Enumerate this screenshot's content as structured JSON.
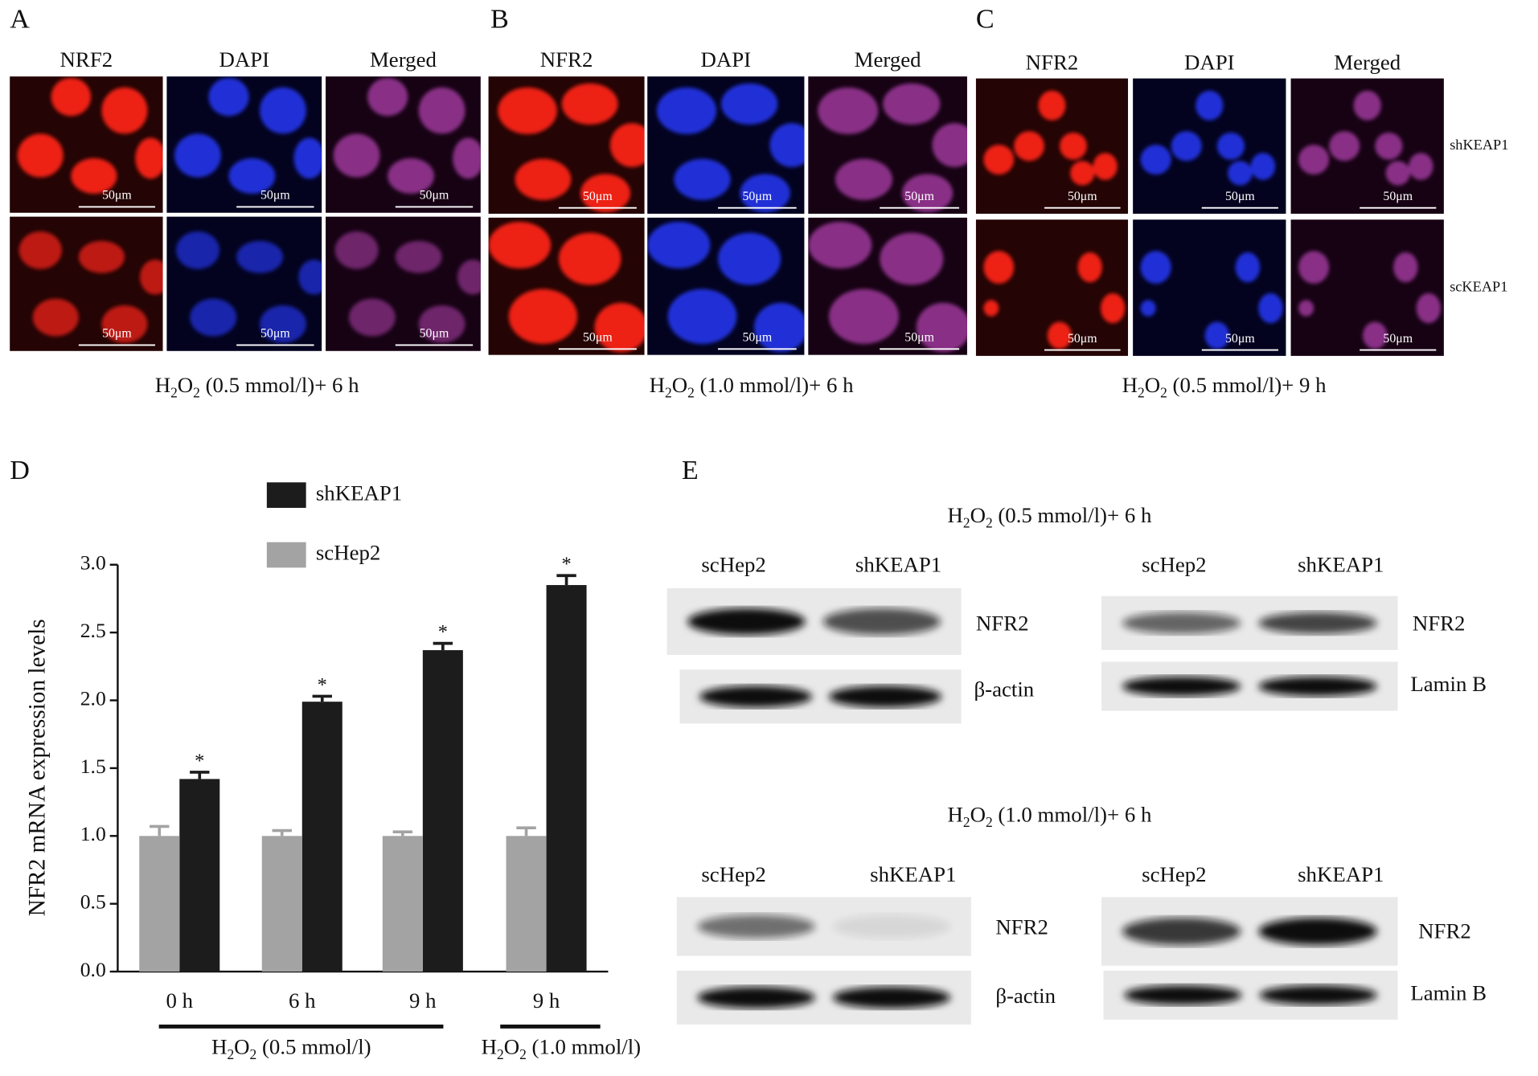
{
  "panels": {
    "A": {
      "label": "A",
      "columns": [
        "NRF2",
        "DAPI",
        "Merged"
      ],
      "scale_bar": "50μm",
      "caption": [
        "H",
        "2",
        "O",
        "2",
        " (0.5 mmol/l)+ 6 h"
      ]
    },
    "B": {
      "label": "B",
      "columns": [
        "NFR2",
        "DAPI",
        "Merged"
      ],
      "scale_bar": "50μm",
      "caption": [
        "H",
        "2",
        "O",
        "2",
        " (1.0 mmol/l)+ 6 h"
      ]
    },
    "C": {
      "label": "C",
      "columns": [
        "NFR2",
        "DAPI",
        "Merged"
      ],
      "rows": [
        "shKEAP1",
        "scKEAP1"
      ],
      "scale_bar": "50μm",
      "caption": [
        "H",
        "2",
        "O",
        "2",
        " (0.5 mmol/l)+ 9 h"
      ]
    },
    "D": {
      "label": "D"
    },
    "E": {
      "label": "E",
      "blocks": [
        {
          "title": [
            "H",
            "2",
            "O",
            "2",
            " (0.5 mmol/l)+ 6 h"
          ],
          "left": {
            "lanes": [
              "scHep2",
              "shKEAP1"
            ],
            "rows": [
              "NFR2",
              "β-actin"
            ]
          },
          "right": {
            "lanes": [
              "scHep2",
              "shKEAP1"
            ],
            "rows": [
              "NFR2",
              "Lamin B"
            ]
          }
        },
        {
          "title": [
            "H",
            "2",
            "O",
            "2",
            " (1.0 mmol/l)+ 6 h"
          ],
          "left": {
            "lanes": [
              "scHep2",
              "shKEAP1"
            ],
            "rows": [
              "NFR2",
              "β-actin"
            ]
          },
          "right": {
            "lanes": [
              "scHep2",
              "shKEAP1"
            ],
            "rows": [
              "NFR2",
              "Lamin B"
            ]
          }
        }
      ]
    }
  },
  "chart_data": {
    "type": "bar",
    "y_label": "NFR2 mRNA expression levels",
    "categories": [
      "0 h",
      "6 h",
      "9 h",
      "9 h"
    ],
    "series": [
      {
        "name": "shKEAP1",
        "color": "#1c1c1c",
        "values": [
          1.42,
          1.99,
          2.37,
          2.85
        ],
        "errors": [
          0.05,
          0.04,
          0.05,
          0.07
        ]
      },
      {
        "name": "scHep2",
        "color": "#a3a3a3",
        "values": [
          1.0,
          1.0,
          1.0,
          1.0
        ],
        "errors": [
          0.07,
          0.04,
          0.03,
          0.06
        ]
      }
    ],
    "annotations": [
      "*",
      "*",
      "*",
      "*"
    ],
    "groups": [
      [
        "H",
        "2",
        "O",
        "2",
        " (0.5 mmol/l)"
      ],
      [
        "H",
        "2",
        "O",
        "2",
        " (1.0 mmol/l)"
      ]
    ],
    "ylim": [
      0,
      3
    ],
    "yticks": [
      {
        "value": 0,
        "label": "0.0"
      },
      {
        "value": 0.5,
        "label": "0.5"
      },
      {
        "value": 1,
        "label": "1.0"
      },
      {
        "value": 1.5,
        "label": "1.5"
      },
      {
        "value": 2,
        "label": "2.0"
      },
      {
        "value": 2.5,
        "label": "2.5"
      },
      {
        "value": 3,
        "label": "3.0"
      }
    ]
  }
}
